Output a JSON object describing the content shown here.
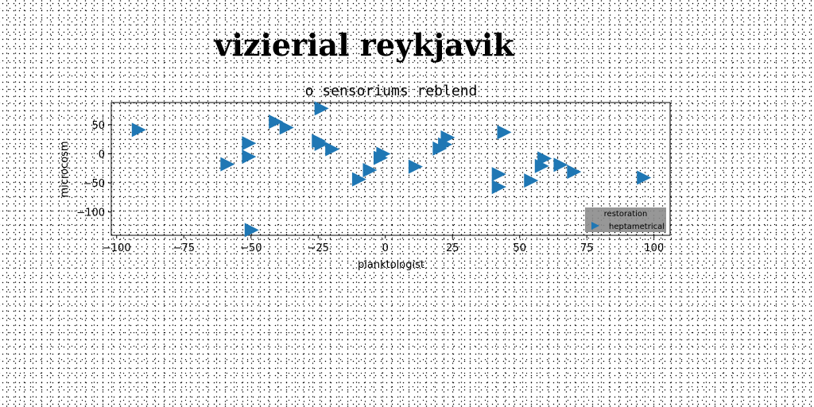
{
  "figure": {
    "title": "vizierial reykjavik"
  },
  "chart_data": {
    "type": "scatter",
    "title": "o sensoriums reblend",
    "xlabel": "planktologist",
    "ylabel": "microcosm",
    "xlim": [
      -102,
      106
    ],
    "ylim": [
      -140,
      88
    ],
    "xticks": [
      -100,
      -75,
      -50,
      -25,
      0,
      25,
      50,
      75,
      100
    ],
    "yticks": [
      50,
      0,
      -50,
      -100
    ],
    "xtick_labels": [
      "−100",
      "−75",
      "−50",
      "−25",
      "0",
      "25",
      "50",
      "75",
      "100"
    ],
    "ytick_labels": [
      "50",
      "0",
      "−50",
      "−100"
    ],
    "grid": false,
    "legend": {
      "title": "restoration",
      "position": "bottom-right"
    },
    "series": [
      {
        "name": "heptametrical",
        "marker": "triangle-right",
        "color": "#1f77b4",
        "points": [
          {
            "x": -92,
            "y": 41
          },
          {
            "x": -59,
            "y": -18
          },
          {
            "x": -51,
            "y": 18
          },
          {
            "x": -51,
            "y": -5
          },
          {
            "x": -50,
            "y": -131
          },
          {
            "x": -41,
            "y": 55
          },
          {
            "x": -37,
            "y": 45
          },
          {
            "x": -24,
            "y": 78
          },
          {
            "x": -25,
            "y": 22
          },
          {
            "x": -24,
            "y": 17
          },
          {
            "x": -20,
            "y": 8
          },
          {
            "x": -10,
            "y": -44
          },
          {
            "x": -6,
            "y": -28
          },
          {
            "x": -2,
            "y": -7
          },
          {
            "x": -1,
            "y": 0
          },
          {
            "x": 11,
            "y": -22
          },
          {
            "x": 20,
            "y": 9
          },
          {
            "x": 22,
            "y": 16
          },
          {
            "x": 23,
            "y": 28
          },
          {
            "x": 42,
            "y": -35
          },
          {
            "x": 42,
            "y": -57
          },
          {
            "x": 44,
            "y": 37
          },
          {
            "x": 54,
            "y": -46
          },
          {
            "x": 58,
            "y": -21
          },
          {
            "x": 59,
            "y": -8
          },
          {
            "x": 65,
            "y": -19
          },
          {
            "x": 70,
            "y": -31
          },
          {
            "x": 96,
            "y": -41
          }
        ]
      }
    ]
  }
}
